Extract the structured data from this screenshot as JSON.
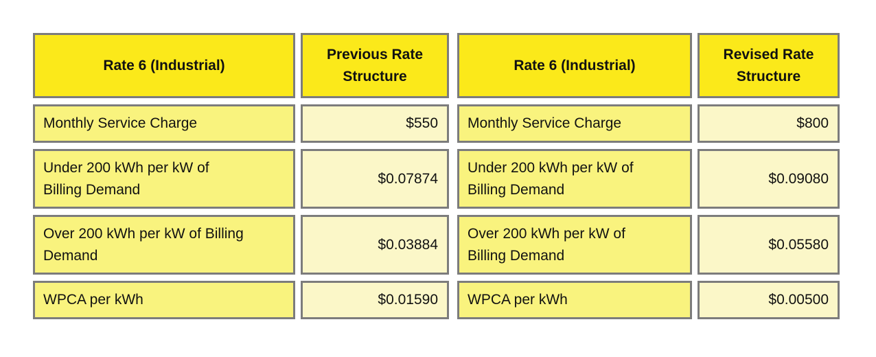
{
  "colors": {
    "header_bg": "#FBE91A",
    "label_cell_bg": "#F9F37E",
    "value_cell_bg": "#FBF7C8",
    "border": "#7C7C7C",
    "text": "#111111",
    "page_bg": "#FFFFFF"
  },
  "tables": [
    {
      "header": {
        "label": "Rate 6 (Industrial)",
        "value": "Previous Rate\nStructure"
      },
      "rows": [
        {
          "label": "Monthly Service Charge",
          "value": "$550"
        },
        {
          "label": "Under 200 kWh per kW of\nBilling Demand",
          "value": "$0.07874"
        },
        {
          "label": "Over 200 kWh per kW of Billing\nDemand",
          "value": "$0.03884"
        },
        {
          "label": "WPCA per kWh",
          "value": "$0.01590"
        }
      ]
    },
    {
      "header": {
        "label": "Rate 6 (Industrial)",
        "value": "Revised Rate\nStructure"
      },
      "rows": [
        {
          "label": "Monthly Service Charge",
          "value": "$800"
        },
        {
          "label": "Under 200 kWh per kW of\nBilling Demand",
          "value": "$0.09080"
        },
        {
          "label": "Over 200 kWh per kW of\nBilling Demand",
          "value": "$0.05580"
        },
        {
          "label": "WPCA per kWh",
          "value": "$0.00500"
        }
      ]
    }
  ],
  "chart_data": [
    {
      "type": "table",
      "title": "Rate 6 (Industrial) - Previous Rate Structure",
      "columns": [
        "Rate 6 (Industrial)",
        "Previous Rate Structure"
      ],
      "rows": [
        [
          "Monthly Service Charge",
          "$550"
        ],
        [
          "Under 200 kWh per kW of Billing Demand",
          "$0.07874"
        ],
        [
          "Over 200 kWh per kW of Billing Demand",
          "$0.03884"
        ],
        [
          "WPCA per kWh",
          "$0.01590"
        ]
      ]
    },
    {
      "type": "table",
      "title": "Rate 6 (Industrial) - Revised Rate Structure",
      "columns": [
        "Rate 6 (Industrial)",
        "Revised Rate Structure"
      ],
      "rows": [
        [
          "Monthly Service Charge",
          "$800"
        ],
        [
          "Under 200 kWh per kW of Billing Demand",
          "$0.09080"
        ],
        [
          "Over 200 kWh per kW of Billing Demand",
          "$0.05580"
        ],
        [
          "WPCA per kWh",
          "$0.00500"
        ]
      ]
    }
  ]
}
